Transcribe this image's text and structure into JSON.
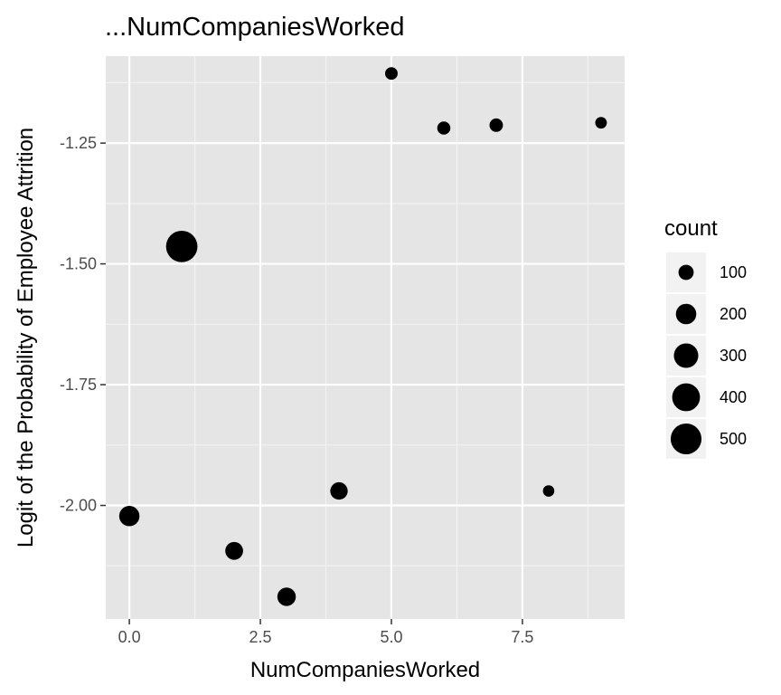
{
  "chart_data": {
    "type": "scatter",
    "title": "...NumCompaniesWorked",
    "xlabel": "NumCompaniesWorked",
    "ylabel": "Logit of the Probability of Employee Attrition",
    "xlim": [
      -0.45,
      9.45
    ],
    "ylim": [
      -2.235,
      -1.07
    ],
    "x_ticks": [
      0,
      2.5,
      5,
      7.5
    ],
    "x_tick_labels": [
      "0.0",
      "2.5",
      "5.0",
      "7.5"
    ],
    "y_ticks": [
      -1.25,
      -1.5,
      -1.75,
      -2.0
    ],
    "y_tick_labels": [
      "-1.25",
      "-1.50",
      "-1.75",
      "-2.00"
    ],
    "grid": true,
    "size_legend": {
      "title": "count",
      "values": [
        100,
        200,
        300,
        400,
        500
      ],
      "labels": [
        "100",
        "200",
        "300",
        "400",
        "500"
      ],
      "placement": "right"
    },
    "points": [
      {
        "x": 0,
        "y": -2.022,
        "count": 197
      },
      {
        "x": 1,
        "y": -1.464,
        "count": 521
      },
      {
        "x": 2,
        "y": -2.094,
        "count": 146
      },
      {
        "x": 3,
        "y": -2.189,
        "count": 159
      },
      {
        "x": 4,
        "y": -1.97,
        "count": 139
      },
      {
        "x": 5,
        "y": -1.106,
        "count": 63
      },
      {
        "x": 6,
        "y": -1.219,
        "count": 70
      },
      {
        "x": 7,
        "y": -1.213,
        "count": 74
      },
      {
        "x": 8,
        "y": -1.97,
        "count": 49
      },
      {
        "x": 9,
        "y": -1.208,
        "count": 52
      }
    ],
    "colors": {
      "panel": "#e5e5e5",
      "grid_major": "#ffffff",
      "grid_minor": "#f2f2f2",
      "point": "#000000",
      "legend_key_bg": "#f2f2f2"
    }
  }
}
